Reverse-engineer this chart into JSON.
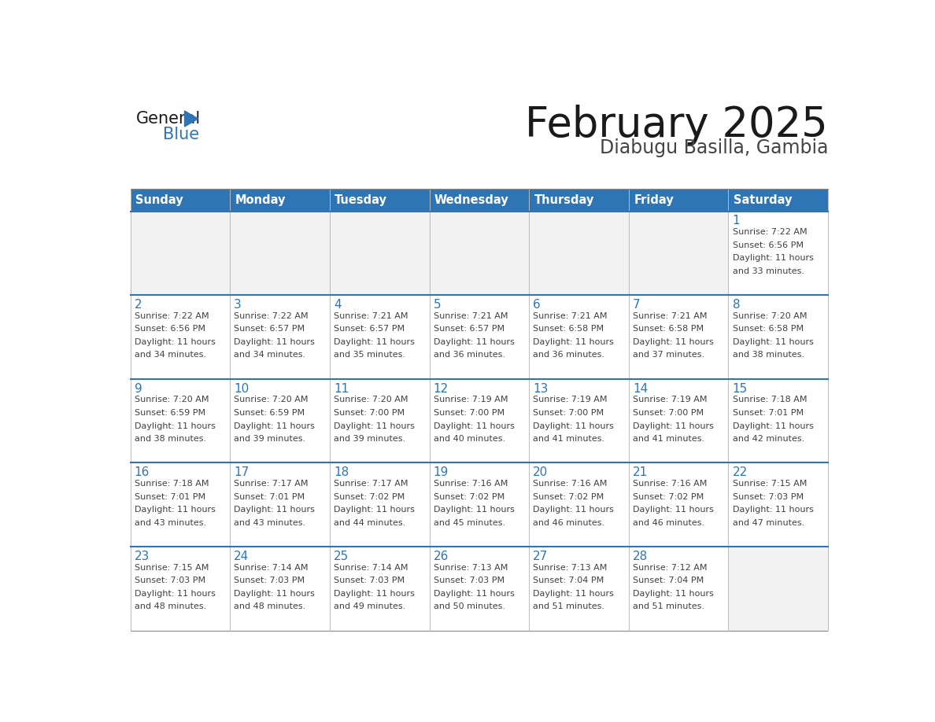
{
  "title": "February 2025",
  "subtitle": "Diabugu Basilla, Gambia",
  "days_of_week": [
    "Sunday",
    "Monday",
    "Tuesday",
    "Wednesday",
    "Thursday",
    "Friday",
    "Saturday"
  ],
  "header_bg": "#2E75B6",
  "header_text": "#FFFFFF",
  "row_bg": "#F2F2F2",
  "cell_bg": "#FFFFFF",
  "day_num_color": "#2E75B6",
  "info_color": "#404040",
  "title_color": "#1a1a1a",
  "subtitle_color": "#444444",
  "logo_general_color": "#1a1a1a",
  "logo_blue_color": "#2E75B6",
  "row_sep_color": "#2E75B6",
  "col_sep_color": "#BBBBBB",
  "calendar_data": [
    [
      null,
      null,
      null,
      null,
      null,
      null,
      {
        "day": 1,
        "sunrise": "7:22 AM",
        "sunset": "6:56 PM",
        "daylight": "11 hours and 33 minutes."
      }
    ],
    [
      {
        "day": 2,
        "sunrise": "7:22 AM",
        "sunset": "6:56 PM",
        "daylight": "11 hours and 34 minutes."
      },
      {
        "day": 3,
        "sunrise": "7:22 AM",
        "sunset": "6:57 PM",
        "daylight": "11 hours and 34 minutes."
      },
      {
        "day": 4,
        "sunrise": "7:21 AM",
        "sunset": "6:57 PM",
        "daylight": "11 hours and 35 minutes."
      },
      {
        "day": 5,
        "sunrise": "7:21 AM",
        "sunset": "6:57 PM",
        "daylight": "11 hours and 36 minutes."
      },
      {
        "day": 6,
        "sunrise": "7:21 AM",
        "sunset": "6:58 PM",
        "daylight": "11 hours and 36 minutes."
      },
      {
        "day": 7,
        "sunrise": "7:21 AM",
        "sunset": "6:58 PM",
        "daylight": "11 hours and 37 minutes."
      },
      {
        "day": 8,
        "sunrise": "7:20 AM",
        "sunset": "6:58 PM",
        "daylight": "11 hours and 38 minutes."
      }
    ],
    [
      {
        "day": 9,
        "sunrise": "7:20 AM",
        "sunset": "6:59 PM",
        "daylight": "11 hours and 38 minutes."
      },
      {
        "day": 10,
        "sunrise": "7:20 AM",
        "sunset": "6:59 PM",
        "daylight": "11 hours and 39 minutes."
      },
      {
        "day": 11,
        "sunrise": "7:20 AM",
        "sunset": "7:00 PM",
        "daylight": "11 hours and 39 minutes."
      },
      {
        "day": 12,
        "sunrise": "7:19 AM",
        "sunset": "7:00 PM",
        "daylight": "11 hours and 40 minutes."
      },
      {
        "day": 13,
        "sunrise": "7:19 AM",
        "sunset": "7:00 PM",
        "daylight": "11 hours and 41 minutes."
      },
      {
        "day": 14,
        "sunrise": "7:19 AM",
        "sunset": "7:00 PM",
        "daylight": "11 hours and 41 minutes."
      },
      {
        "day": 15,
        "sunrise": "7:18 AM",
        "sunset": "7:01 PM",
        "daylight": "11 hours and 42 minutes."
      }
    ],
    [
      {
        "day": 16,
        "sunrise": "7:18 AM",
        "sunset": "7:01 PM",
        "daylight": "11 hours and 43 minutes."
      },
      {
        "day": 17,
        "sunrise": "7:17 AM",
        "sunset": "7:01 PM",
        "daylight": "11 hours and 43 minutes."
      },
      {
        "day": 18,
        "sunrise": "7:17 AM",
        "sunset": "7:02 PM",
        "daylight": "11 hours and 44 minutes."
      },
      {
        "day": 19,
        "sunrise": "7:16 AM",
        "sunset": "7:02 PM",
        "daylight": "11 hours and 45 minutes."
      },
      {
        "day": 20,
        "sunrise": "7:16 AM",
        "sunset": "7:02 PM",
        "daylight": "11 hours and 46 minutes."
      },
      {
        "day": 21,
        "sunrise": "7:16 AM",
        "sunset": "7:02 PM",
        "daylight": "11 hours and 46 minutes."
      },
      {
        "day": 22,
        "sunrise": "7:15 AM",
        "sunset": "7:03 PM",
        "daylight": "11 hours and 47 minutes."
      }
    ],
    [
      {
        "day": 23,
        "sunrise": "7:15 AM",
        "sunset": "7:03 PM",
        "daylight": "11 hours and 48 minutes."
      },
      {
        "day": 24,
        "sunrise": "7:14 AM",
        "sunset": "7:03 PM",
        "daylight": "11 hours and 48 minutes."
      },
      {
        "day": 25,
        "sunrise": "7:14 AM",
        "sunset": "7:03 PM",
        "daylight": "11 hours and 49 minutes."
      },
      {
        "day": 26,
        "sunrise": "7:13 AM",
        "sunset": "7:03 PM",
        "daylight": "11 hours and 50 minutes."
      },
      {
        "day": 27,
        "sunrise": "7:13 AM",
        "sunset": "7:04 PM",
        "daylight": "11 hours and 51 minutes."
      },
      {
        "day": 28,
        "sunrise": "7:12 AM",
        "sunset": "7:04 PM",
        "daylight": "11 hours and 51 minutes."
      },
      null
    ]
  ]
}
